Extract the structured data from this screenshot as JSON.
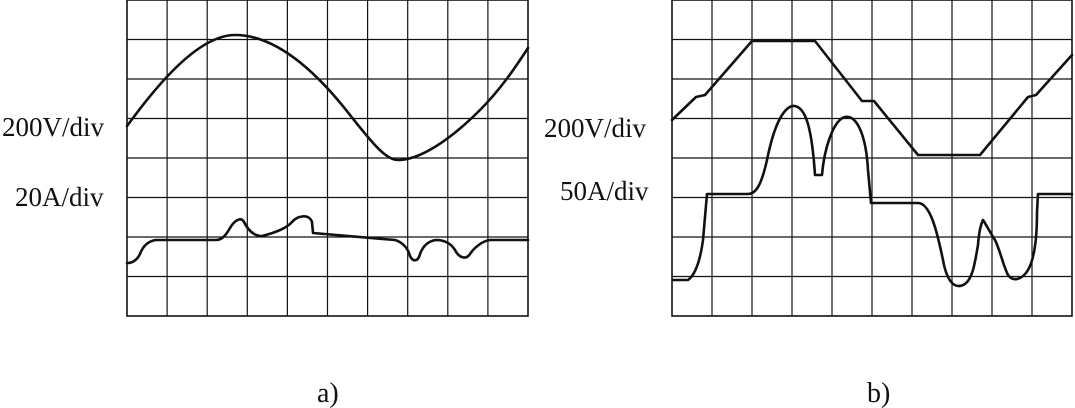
{
  "panels": [
    {
      "id": "a",
      "caption": "a)",
      "scales": [
        "200V/div",
        "20A/div"
      ],
      "grid": {
        "cols": 10,
        "rows": 8
      }
    },
    {
      "id": "b",
      "caption": "b)",
      "scales": [
        "200V/div",
        "50A/div"
      ],
      "grid": {
        "cols": 10,
        "rows": 8
      }
    }
  ],
  "colors": {
    "ink": "#111111",
    "background": "#ffffff"
  }
}
